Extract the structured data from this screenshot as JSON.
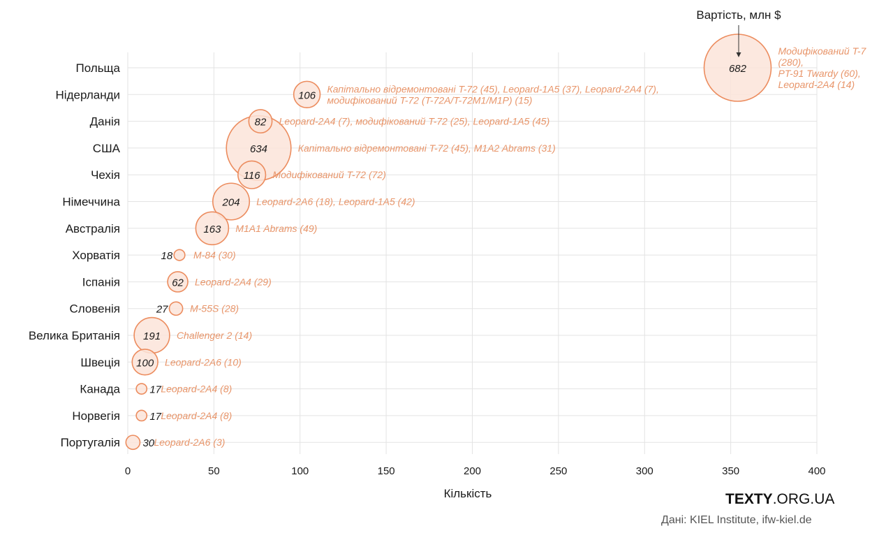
{
  "chart_data": {
    "type": "bubble",
    "xlabel": "Кількість",
    "size_label": "Вартість, млн $",
    "xlim": [
      0,
      400
    ],
    "xticks": [
      0,
      50,
      100,
      150,
      200,
      250,
      300,
      350,
      400
    ],
    "colors": {
      "bubble_fill": "#fbe4d9",
      "bubble_stroke": "#ec8c5e",
      "note": "#e8956a",
      "grid": "#e3e3e3"
    },
    "series": [
      {
        "country": "Польща",
        "quantity": 354,
        "value": 682,
        "note": [
          "Модифікований T-7",
          "(280),",
          "PT-91 Twardy (60),",
          "Leopard-2A4 (14)"
        ]
      },
      {
        "country": "Нідерланди",
        "quantity": 104,
        "value": 106,
        "note": [
          "Капітально відремонтовані T-72 (45), Leopard-1A5 (37), Leopard-2A4 (7),",
          "модифікований T-72 (T-72A/T-72M1/M1P) (15)"
        ]
      },
      {
        "country": "Данія",
        "quantity": 77,
        "value": 82,
        "note": [
          "Leopard-2A4 (7), модифікований T-72 (25), Leopard-1A5 (45)"
        ]
      },
      {
        "country": "США",
        "quantity": 76,
        "value": 634,
        "note": [
          "Капітально відремонтовані T-72 (45), M1A2 Abrams (31)"
        ]
      },
      {
        "country": "Чехія",
        "quantity": 72,
        "value": 116,
        "note": [
          "Модифікований T-72 (72)"
        ]
      },
      {
        "country": "Німеччина",
        "quantity": 60,
        "value": 204,
        "note": [
          "Leopard-2A6 (18), Leopard-1A5 (42)"
        ]
      },
      {
        "country": "Австралія",
        "quantity": 49,
        "value": 163,
        "note": [
          "M1A1 Abrams (49)"
        ]
      },
      {
        "country": "Хорватія",
        "quantity": 30,
        "value": 18,
        "note": [
          "M-84 (30)"
        ]
      },
      {
        "country": "Іспанія",
        "quantity": 29,
        "value": 62,
        "note": [
          "Leopard-2A4 (29)"
        ]
      },
      {
        "country": "Словенія",
        "quantity": 28,
        "value": 27,
        "note": [
          "M-55S (28)"
        ]
      },
      {
        "country": "Велика Британія",
        "quantity": 14,
        "value": 191,
        "note": [
          "Challenger 2 (14)"
        ]
      },
      {
        "country": "Швеція",
        "quantity": 10,
        "value": 100,
        "note": [
          "Leopard-2A6 (10)"
        ]
      },
      {
        "country": "Канада",
        "quantity": 8,
        "value": 17,
        "note": [
          "Leopard-2A4 (8)"
        ]
      },
      {
        "country": "Норвегія",
        "quantity": 8,
        "value": 17,
        "note": [
          "Leopard-2A4 (8)"
        ]
      },
      {
        "country": "Португалія",
        "quantity": 3,
        "value": 30,
        "note": [
          "Leopard-2A6 (3)"
        ]
      }
    ]
  },
  "footer": {
    "brand_bold": "TEXTY",
    "brand_rest": ".ORG.UA",
    "source": "Дані: KIEL Institute, ifw-kiel.de"
  }
}
